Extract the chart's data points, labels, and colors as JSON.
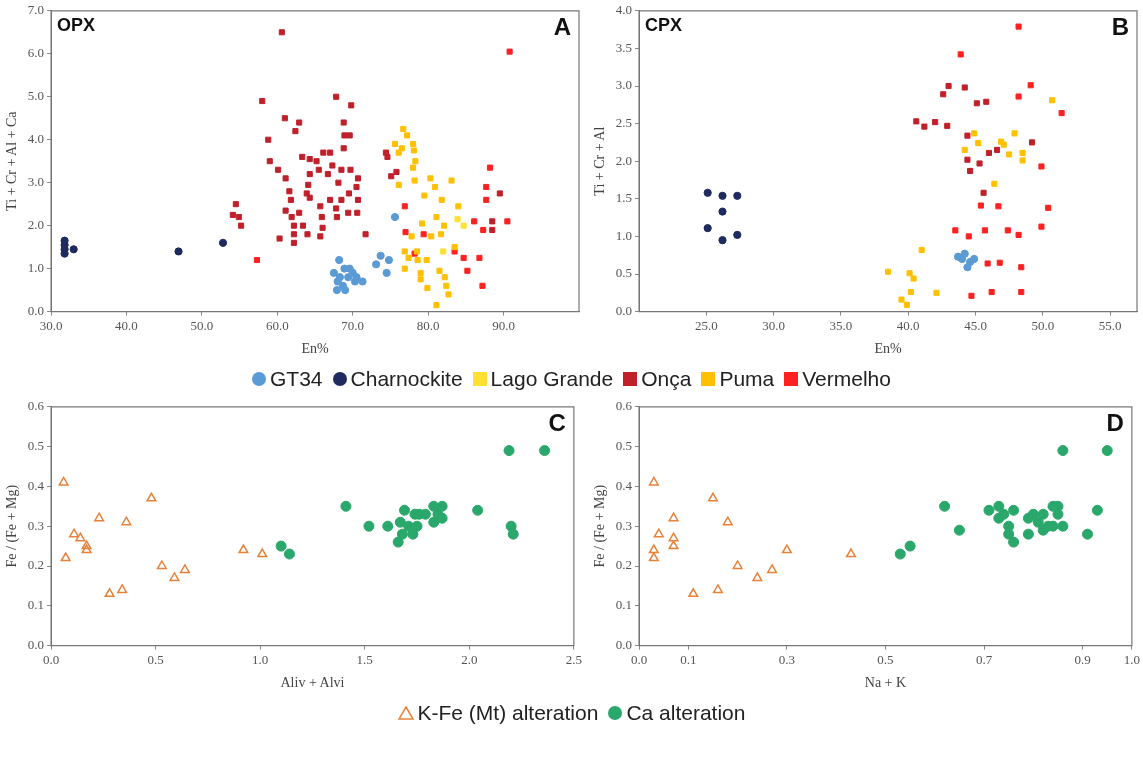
{
  "chart_data": [
    {
      "type": "scatter",
      "title": "OPX",
      "annotations": [
        "A"
      ],
      "xlabel": "En%",
      "ylabel": "Ti + Cr + Al + Ca",
      "xlim": [
        30,
        100
      ],
      "ylim": [
        0,
        7
      ],
      "legend": "bottom",
      "grid": false,
      "xticks": [
        {
          "value": 30,
          "label": "30.0"
        },
        {
          "value": 40,
          "label": "40.0"
        },
        {
          "value": 50,
          "label": "50.0"
        },
        {
          "value": 60,
          "label": "60.0"
        },
        {
          "value": 70,
          "label": "70.0"
        },
        {
          "value": 80,
          "label": "80.0"
        },
        {
          "value": 90,
          "label": "90.0"
        }
      ],
      "yticks": [
        {
          "value": 0,
          "label": "0.0"
        },
        {
          "value": 1,
          "label": "1.0"
        },
        {
          "value": 2,
          "label": "2.0"
        },
        {
          "value": 3,
          "label": "3.0"
        },
        {
          "value": 4,
          "label": "4.0"
        },
        {
          "value": 5,
          "label": "5.0"
        },
        {
          "value": 6,
          "label": "6.0"
        },
        {
          "value": 7,
          "label": "7.0"
        }
      ],
      "series": [
        {
          "name": "GT34",
          "color": "#5b9bd5",
          "marker": "circle",
          "x": [
            67.5,
            68.0,
            67.9,
            68.9,
            69.4,
            70.0,
            70.3,
            71.3,
            68.7,
            69.6,
            70.5,
            69.0,
            68.3,
            68.2,
            75.6,
            73.7,
            73.1,
            74.8,
            74.5
          ],
          "values": [
            0.9,
            0.7,
            0.5,
            1.0,
            0.8,
            0.9,
            0.7,
            0.7,
            0.6,
            1.0,
            0.8,
            0.5,
            0.8,
            1.2,
            2.2,
            1.3,
            1.1,
            1.2,
            0.9
          ]
        },
        {
          "name": "Charnockite",
          "color": "#1f2a5e",
          "marker": "circle",
          "x": [
            31.8,
            31.8,
            31.8,
            31.8,
            33.0,
            46.9,
            52.8
          ],
          "values": [
            1.65,
            1.55,
            1.45,
            1.35,
            1.45,
            1.4,
            1.6
          ]
        },
        {
          "name": "Lago Grande",
          "color": "#ffe033",
          "marker": "square",
          "x": [
            83.9,
            84.7,
            82.0
          ],
          "values": [
            2.15,
            2.0,
            1.4
          ]
        },
        {
          "name": "Onça",
          "color": "#c0202a",
          "marker": "square",
          "x": [
            60.6,
            58.0,
            67.8,
            69.8,
            61.0,
            62.9,
            62.4,
            68.8,
            68.9,
            69.6,
            58.8,
            68.8,
            63.3,
            64.3,
            65.2,
            66.1,
            67.0,
            59.0,
            60.1,
            67.3,
            68.5,
            69.7,
            64.3,
            65.5,
            66.7,
            61.1,
            70.7,
            68.1,
            64.1,
            70.5,
            61.6,
            63.9,
            69.5,
            54.5,
            61.8,
            64.3,
            67.0,
            68.5,
            70.7,
            65.7,
            67.8,
            61.1,
            62.9,
            54.1,
            69.4,
            70.6,
            54.9,
            61.9,
            65.9,
            67.9,
            55.2,
            62.2,
            63.4,
            66.0,
            71.7,
            64.0,
            62.2,
            60.3,
            65.7,
            62.2,
            74.4,
            74.6,
            75.1,
            75.8,
            89.5,
            88.5,
            88.5
          ],
          "values": [
            6.5,
            4.9,
            5.0,
            4.8,
            4.5,
            4.4,
            4.2,
            4.4,
            4.1,
            4.1,
            4.0,
            3.8,
            3.6,
            3.55,
            3.5,
            3.7,
            3.7,
            3.5,
            3.3,
            3.4,
            3.3,
            3.3,
            3.2,
            3.3,
            3.2,
            3.1,
            3.1,
            3.0,
            2.95,
            2.9,
            2.8,
            2.75,
            2.75,
            2.5,
            2.6,
            2.65,
            2.6,
            2.6,
            2.6,
            2.45,
            2.4,
            2.35,
            2.3,
            2.25,
            2.3,
            2.3,
            2.2,
            2.2,
            2.2,
            2.2,
            2.0,
            2.0,
            2.0,
            1.95,
            1.8,
            1.8,
            1.8,
            1.7,
            1.75,
            1.6,
            3.7,
            3.6,
            3.15,
            3.25,
            2.75,
            2.1,
            1.9
          ]
        },
        {
          "name": "Puma",
          "color": "#ffc000",
          "marker": "square",
          "x": [
            76.7,
            77.2,
            78.0,
            78.1,
            75.6,
            76.5,
            76.1,
            78.3,
            78.0,
            78.2,
            76.1,
            80.3,
            83.1,
            80.9,
            81.8,
            79.5,
            81.1,
            79.2,
            82.1,
            80.4,
            81.7,
            77.8,
            76.9,
            78.5,
            77.4,
            78.6,
            79.8,
            76.9,
            79.0,
            81.5,
            79.0,
            79.9,
            82.2,
            82.4,
            82.7,
            81.1,
            83.5,
            84.0
          ],
          "values": [
            4.25,
            4.1,
            3.9,
            3.75,
            3.9,
            3.8,
            3.7,
            3.5,
            3.35,
            3.05,
            2.95,
            3.1,
            3.05,
            2.9,
            2.6,
            2.7,
            2.2,
            2.05,
            2.0,
            1.75,
            1.8,
            1.75,
            1.4,
            1.4,
            1.25,
            1.2,
            1.2,
            1.0,
            0.9,
            0.95,
            0.75,
            0.55,
            0.8,
            0.6,
            0.4,
            0.15,
            1.5,
            2.45
          ]
        },
        {
          "name": "Vermelho",
          "color": "#ff2020",
          "marker": "square",
          "x": [
            90.8,
            88.2,
            87.7,
            87.7,
            90.5,
            86.1,
            87.3,
            76.9,
            77.0,
            79.4,
            78.2,
            83.5,
            84.7,
            86.8,
            85.2,
            87.2,
            57.3
          ],
          "values": [
            6.05,
            3.35,
            2.9,
            2.6,
            2.1,
            2.1,
            1.9,
            2.45,
            1.85,
            1.8,
            1.35,
            1.4,
            1.25,
            1.25,
            0.95,
            0.6,
            1.2
          ]
        }
      ]
    },
    {
      "type": "scatter",
      "title": "CPX",
      "annotations": [
        "B"
      ],
      "xlabel": "En%",
      "ylabel": "Ti + Cr + Al",
      "xlim": [
        20,
        57
      ],
      "ylim": [
        0,
        4
      ],
      "grid": false,
      "xticks": [
        {
          "value": 25,
          "label": "25.0"
        },
        {
          "value": 30,
          "label": "30.0"
        },
        {
          "value": 35,
          "label": "35.0"
        },
        {
          "value": 40,
          "label": "40.0"
        },
        {
          "value": 45,
          "label": "45.0"
        },
        {
          "value": 50,
          "label": "50.0"
        },
        {
          "value": 55,
          "label": "55.0"
        }
      ],
      "yticks": [
        {
          "value": 0,
          "label": "0.0"
        },
        0.5,
        {
          "value": 1,
          "label": "1.0"
        },
        1.5,
        {
          "value": 2,
          "label": "2.0"
        },
        2.5,
        {
          "value": 3,
          "label": "3.0"
        },
        3.5,
        {
          "value": 4,
          "label": "4.0"
        }
      ],
      "series": [
        {
          "color": "#5b9bd5",
          "marker": "circle",
          "x": [
            44.2,
            44.0,
            44.6,
            44.4,
            44.9,
            43.7
          ],
          "values": [
            0.77,
            0.7,
            0.66,
            0.59,
            0.7,
            0.73
          ]
        },
        {
          "color": "#1f2a5e",
          "marker": "circle",
          "x": [
            25.1,
            26.2,
            27.3,
            26.2,
            25.1,
            26.2,
            27.3
          ],
          "values": [
            1.58,
            1.54,
            1.54,
            1.33,
            1.11,
            0.95,
            1.02
          ]
        },
        {
          "color": "#c0202a",
          "marker": "square",
          "x": [
            40.6,
            41.2,
            42.0,
            42.9,
            42.6,
            43.0,
            44.2,
            45.1,
            45.8,
            44.4,
            44.4,
            44.6,
            45.3,
            46.0,
            46.6,
            45.6,
            49.2
          ],
          "values": [
            2.53,
            2.46,
            2.52,
            2.47,
            2.89,
            3.0,
            2.98,
            2.77,
            2.79,
            2.34,
            2.02,
            1.87,
            1.97,
            2.11,
            2.15,
            1.58,
            2.25
          ]
        },
        {
          "color": "#ffc000",
          "marker": "square",
          "x": [
            38.5,
            40.1,
            40.4,
            41.0,
            42.1,
            40.2,
            39.5,
            39.9,
            44.2,
            44.9,
            45.2,
            46.4,
            47.1,
            47.9,
            47.5,
            48.5,
            48.5,
            50.7,
            46.9
          ],
          "values": [
            0.53,
            0.51,
            0.44,
            0.82,
            0.25,
            0.26,
            0.16,
            0.09,
            2.15,
            2.37,
            2.24,
            1.7,
            2.22,
            2.37,
            2.09,
            2.11,
            2.01,
            2.81,
            2.26
          ]
        },
        {
          "color": "#ff2020",
          "marker": "square",
          "x": [
            48.2,
            43.9,
            48.2,
            49.1,
            51.4,
            49.9,
            50.4,
            49.9,
            45.4,
            46.7,
            43.5,
            44.5,
            45.7,
            47.4,
            48.2,
            45.9,
            46.8,
            48.4,
            44.7,
            46.2,
            48.4
          ],
          "values": [
            3.79,
            3.42,
            2.86,
            3.01,
            2.64,
            1.93,
            1.38,
            1.13,
            1.41,
            1.4,
            1.08,
            1.0,
            1.08,
            1.08,
            1.02,
            0.64,
            0.65,
            0.59,
            0.21,
            0.26,
            0.26
          ]
        }
      ]
    },
    {
      "type": "scatter",
      "annotations": [
        "C"
      ],
      "xlabel": "Aliv + Alvi",
      "ylabel": "Fe / (Fe + Mg)",
      "xlim": [
        0,
        2.5
      ],
      "ylim": [
        0,
        0.6
      ],
      "legend": "bottom",
      "grid": false,
      "xticks": [
        {
          "value": 0,
          "label": "0.0"
        },
        0.5,
        {
          "value": 1,
          "label": "1.0"
        },
        1.5,
        {
          "value": 2,
          "label": "2.0"
        },
        2.5
      ],
      "yticks": [
        {
          "value": 0,
          "label": "0.0"
        },
        0.1,
        0.2,
        0.3,
        0.4,
        0.5,
        0.6
      ],
      "series": [
        {
          "name": "K-Fe (Mt) alteration",
          "color": "#e8823a",
          "marker": "triangle",
          "x": [
            0.06,
            0.07,
            0.11,
            0.14,
            0.17,
            0.17,
            0.23,
            0.28,
            0.34,
            0.36,
            0.48,
            0.53,
            0.59,
            0.64,
            0.92,
            1.01
          ],
          "values": [
            0.41,
            0.22,
            0.28,
            0.27,
            0.25,
            0.24,
            0.32,
            0.13,
            0.14,
            0.31,
            0.37,
            0.2,
            0.17,
            0.19,
            0.24,
            0.23
          ]
        },
        {
          "name": "Ca alteration",
          "color": "#2aa86b",
          "marker": "circle",
          "x": [
            1.1,
            1.14,
            1.41,
            1.52,
            1.61,
            1.66,
            1.67,
            1.69,
            1.68,
            1.71,
            1.74,
            1.73,
            1.75,
            1.76,
            1.79,
            1.83,
            1.83,
            1.85,
            1.87,
            1.87,
            2.04,
            2.19,
            2.2,
            2.21,
            2.36
          ],
          "values": [
            0.25,
            0.23,
            0.35,
            0.3,
            0.3,
            0.26,
            0.31,
            0.34,
            0.28,
            0.3,
            0.33,
            0.28,
            0.3,
            0.33,
            0.33,
            0.35,
            0.31,
            0.33,
            0.35,
            0.32,
            0.34,
            0.49,
            0.3,
            0.28,
            0.49
          ]
        }
      ]
    },
    {
      "type": "scatter",
      "annotations": [
        "D"
      ],
      "xlabel": "Na + K",
      "ylabel": "Fe / (Fe + Mg)",
      "xlim": [
        0,
        1
      ],
      "ylim": [
        0,
        0.6
      ],
      "grid": false,
      "xticks": [
        {
          "value": 0,
          "label": "0.0"
        },
        0.1,
        0.3,
        0.5,
        0.7,
        0.9,
        {
          "value": 1,
          "label": "1.0"
        }
      ],
      "yticks": [
        {
          "value": 0,
          "label": "0.0"
        },
        0.1,
        0.2,
        0.3,
        0.4,
        0.5,
        0.6
      ],
      "series": [
        {
          "color": "#e8823a",
          "marker": "triangle",
          "x": [
            0.03,
            0.03,
            0.03,
            0.04,
            0.07,
            0.07,
            0.07,
            0.11,
            0.15,
            0.16,
            0.18,
            0.2,
            0.24,
            0.27,
            0.3,
            0.43
          ],
          "values": [
            0.41,
            0.24,
            0.22,
            0.28,
            0.32,
            0.25,
            0.27,
            0.13,
            0.37,
            0.14,
            0.31,
            0.2,
            0.17,
            0.19,
            0.24,
            0.23
          ]
        },
        {
          "color": "#2aa86b",
          "marker": "circle",
          "x": [
            0.53,
            0.55,
            0.62,
            0.65,
            0.71,
            0.73,
            0.74,
            0.73,
            0.75,
            0.75,
            0.76,
            0.76,
            0.79,
            0.79,
            0.8,
            0.81,
            0.82,
            0.82,
            0.83,
            0.84,
            0.84,
            0.85,
            0.85,
            0.86,
            0.86,
            0.91,
            0.93,
            0.95
          ],
          "values": [
            0.23,
            0.25,
            0.35,
            0.29,
            0.34,
            0.35,
            0.33,
            0.32,
            0.3,
            0.28,
            0.34,
            0.26,
            0.28,
            0.32,
            0.33,
            0.31,
            0.33,
            0.29,
            0.3,
            0.3,
            0.35,
            0.35,
            0.33,
            0.3,
            0.49,
            0.28,
            0.34,
            0.49
          ]
        }
      ]
    }
  ]
}
